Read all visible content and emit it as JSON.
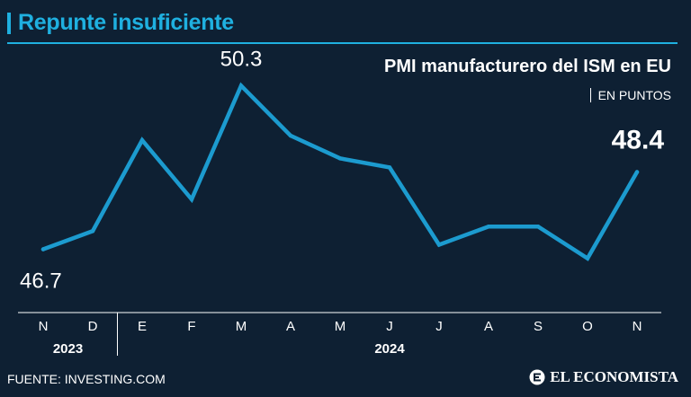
{
  "headline": "Repunte insuficiente",
  "source": "FUENTE: INVESTING.COM",
  "brand": "EL ECONOMISTA",
  "colors": {
    "background": "#0e2033",
    "accent": "#1fb0e0",
    "line": "#1c9bcf",
    "text": "#ffffff"
  },
  "chart_data": {
    "type": "line",
    "title": "PMI manufacturero del ISM en EU",
    "subtitle": "EN PUNTOS",
    "categories": [
      "N",
      "D",
      "E",
      "F",
      "M",
      "A",
      "M",
      "J",
      "J",
      "A",
      "S",
      "O",
      "N"
    ],
    "year_labels": [
      {
        "label": "2023",
        "from": 0,
        "to": 1
      },
      {
        "label": "2024",
        "from": 2,
        "to": 12
      }
    ],
    "series": [
      {
        "values": [
          46.7,
          47.1,
          49.1,
          47.8,
          50.3,
          49.2,
          48.7,
          48.5,
          46.8,
          47.2,
          47.2,
          46.5,
          48.4
        ]
      }
    ],
    "ylim": [
      45.9,
      51.0
    ],
    "data_labels": [
      {
        "index": 0,
        "text": "46.7",
        "position": "below"
      },
      {
        "index": 4,
        "text": "50.3",
        "position": "above"
      },
      {
        "index": 12,
        "text": "48.4",
        "position": "above",
        "emphasis": true
      }
    ],
    "grid": false,
    "legend": "none"
  }
}
